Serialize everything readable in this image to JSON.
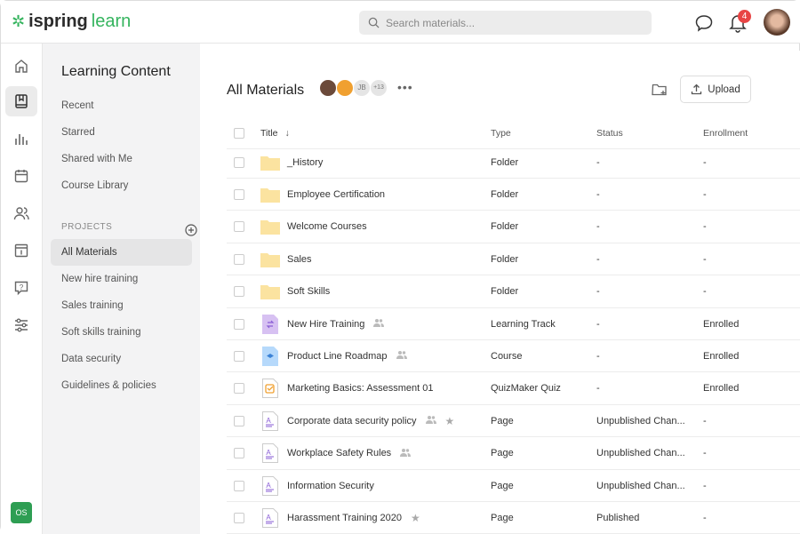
{
  "header": {
    "logo_a": "ispring",
    "logo_b": "learn",
    "search_placeholder": "Search materials...",
    "notifications": "4"
  },
  "rail": {
    "user_initials": "OS"
  },
  "sidebar": {
    "title": "Learning Content",
    "links": [
      "Recent",
      "Starred",
      "Shared with Me",
      "Course Library"
    ],
    "projects_label": "PROJECTS",
    "projects": [
      "All Materials",
      "New hire training",
      "Sales training",
      "Soft skills training",
      "Data security",
      "Guidelines & policies"
    ]
  },
  "main": {
    "title": "All Materials",
    "avatar_initials": "JB",
    "more_members": "+13",
    "upload_label": "Upload",
    "columns": {
      "title": "Title",
      "type": "Type",
      "status": "Status",
      "enrollment": "Enrollment"
    },
    "rows": [
      {
        "title": "_History",
        "icon": "folder",
        "type": "Folder",
        "status": "-",
        "enrollment": "-"
      },
      {
        "title": "Employee Certification",
        "icon": "folder",
        "type": "Folder",
        "status": "-",
        "enrollment": "-"
      },
      {
        "title": "Welcome Courses",
        "icon": "folder",
        "type": "Folder",
        "status": "-",
        "enrollment": "-"
      },
      {
        "title": "Sales",
        "icon": "folder",
        "type": "Folder",
        "status": "-",
        "enrollment": "-"
      },
      {
        "title": "Soft Skills",
        "icon": "folder",
        "type": "Folder",
        "status": "-",
        "enrollment": "-"
      },
      {
        "title": "New Hire Training",
        "icon": "track",
        "shared": true,
        "type": "Learning Track",
        "status": "-",
        "enrollment": "Enrolled"
      },
      {
        "title": "Product Line Roadmap",
        "icon": "course",
        "shared": true,
        "type": "Course",
        "status": "-",
        "enrollment": "Enrolled"
      },
      {
        "title": "Marketing Basics: Assessment 01",
        "icon": "quiz",
        "type": "QuizMaker Quiz",
        "status": "-",
        "enrollment": "Enrolled"
      },
      {
        "title": "Corporate data security policy",
        "icon": "page",
        "shared": true,
        "starred": true,
        "type": "Page",
        "status": "Unpublished Chan...",
        "enrollment": "-"
      },
      {
        "title": "Workplace Safety Rules",
        "icon": "page",
        "shared": true,
        "type": "Page",
        "status": "Unpublished Chan...",
        "enrollment": "-"
      },
      {
        "title": "Information Security",
        "icon": "page",
        "type": "Page",
        "status": "Unpublished Chan...",
        "enrollment": "-"
      },
      {
        "title": "Harassment Training 2020",
        "icon": "page",
        "starred": true,
        "type": "Page",
        "status": "Published",
        "enrollment": "-"
      }
    ]
  }
}
